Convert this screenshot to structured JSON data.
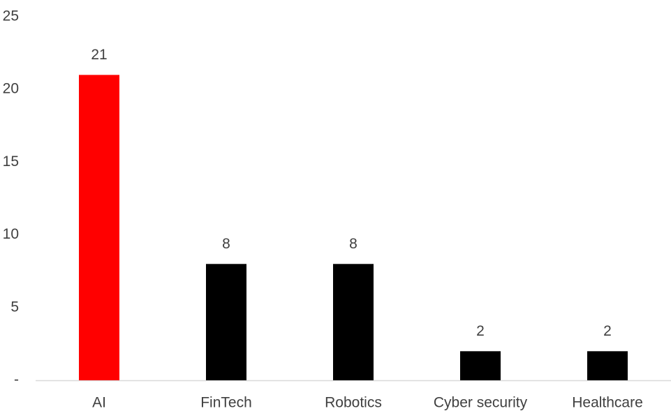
{
  "chart_data": {
    "type": "bar",
    "categories": [
      "AI",
      "FinTech",
      "Robotics",
      "Cyber security",
      "Healthcare"
    ],
    "values": [
      21,
      8,
      8,
      2,
      2
    ],
    "colors": [
      "#ff0000",
      "#000000",
      "#000000",
      "#000000",
      "#000000"
    ],
    "ylim": [
      0,
      25
    ],
    "yticks": [
      {
        "value": 0,
        "label": "-"
      },
      5,
      10,
      15,
      20,
      25
    ],
    "grid": false
  }
}
